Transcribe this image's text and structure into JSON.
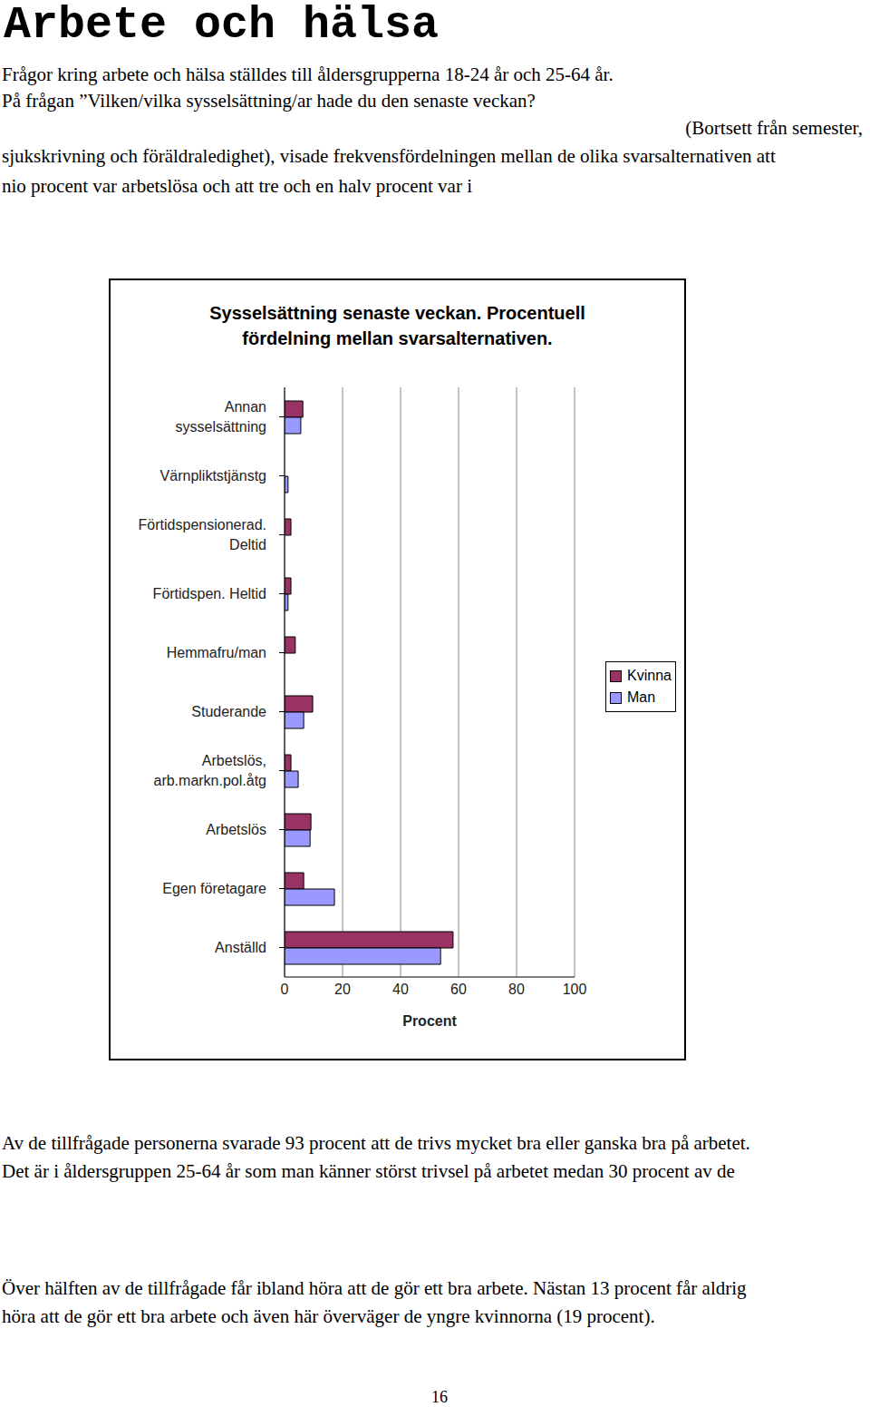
{
  "title": "Arbete och hälsa",
  "intro_lines": [
    "Frågor kring arbete och hälsa ställdes till åldersgrupperna 18-24 år och 25-64 år.",
    "På frågan ”Vilken/vilka sysselsättning/ar hade du den senaste veckan?",
    "(Bortsett från semester,",
    "sjukskrivning och föräldraledighet), visade frekvensfördelningen mellan de olika svarsalternativen att",
    "nio procent var arbetslösa och att tre och en halv procent var i"
  ],
  "chart_data": {
    "type": "bar",
    "orientation": "horizontal",
    "title": "Sysselsättning senaste veckan. Procentuell\nfördelning mellan svarsalternativen.",
    "x_label": "Procent",
    "categories": [
      "Annan\nsysselsättning",
      "Värnpliktstjänstg",
      "Förtidspensionerad.\nDeltid",
      "Förtidspen. Heltid",
      "Hemmafru/man",
      "Studerande",
      "Arbetslös,\narb.markn.pol.åtg",
      "Arbetslös",
      "Egen företagare",
      "Anställd"
    ],
    "series": [
      {
        "name": "Kvinna",
        "color": "#993366",
        "values": [
          6.3,
          0,
          2.2,
          2.2,
          3.7,
          9.7,
          2.2,
          9.1,
          6.6,
          58.1
        ]
      },
      {
        "name": "Man",
        "color": "#9999ff",
        "values": [
          5.6,
          1.2,
          0,
          1.2,
          0,
          6.6,
          4.7,
          8.8,
          17.2,
          53.8
        ]
      }
    ],
    "xlim": [
      0,
      100
    ],
    "xticks": [
      0,
      20,
      40,
      60,
      80,
      100
    ],
    "grid": true,
    "legend": "right",
    "data_labels": false
  },
  "body_lines": [
    "Av de tillfrågade personerna svarade 93 procent att de trivs mycket bra eller ganska bra på arbetet.",
    "Det är i åldersgruppen 25-64 år som man känner störst trivsel på arbetet medan 30 procent av de",
    "Över hälften av de tillfrågade får ibland höra att de gör ett bra arbete. Nästan 13 procent får  aldrig",
    "höra att de gör ett bra arbete och även här överväger de yngre kvinnorna (19 procent)."
  ],
  "page_number": "16"
}
